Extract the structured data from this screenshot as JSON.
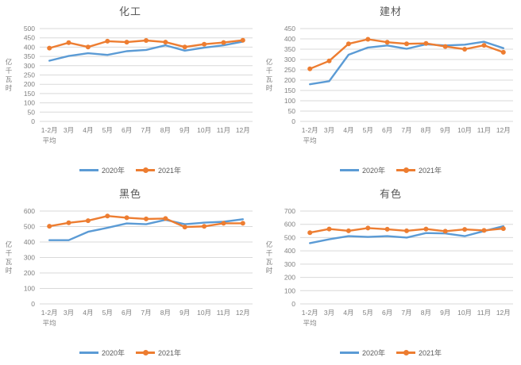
{
  "page": {
    "background": "#ffffff"
  },
  "colors": {
    "series2020": "#5B9BD5",
    "series2021": "#ED7D31",
    "grid": "#D9D9D9",
    "tick_text": "#808080",
    "title_text": "#595959"
  },
  "chart_data": [
    {
      "type": "line",
      "title": "化工",
      "ylabel": "亿千瓦时",
      "ylim": [
        0,
        500
      ],
      "ytick_step": 50,
      "grid": true,
      "legend_position": "bottom",
      "categories": [
        [
          "1-2月",
          "平均"
        ],
        [
          "3月"
        ],
        [
          "4月"
        ],
        [
          "5月"
        ],
        [
          "6月"
        ],
        [
          "7月"
        ],
        [
          "8月"
        ],
        [
          "9月"
        ],
        [
          "10月"
        ],
        [
          "11月"
        ],
        [
          "12月"
        ]
      ],
      "series": [
        {
          "name": "2020年",
          "color": "#5B9BD5",
          "marker": false,
          "values": [
            327,
            352,
            367,
            358,
            378,
            385,
            410,
            381,
            397,
            410,
            430
          ]
        },
        {
          "name": "2021年",
          "color": "#ED7D31",
          "marker": true,
          "values": [
            395,
            424,
            401,
            432,
            427,
            436,
            427,
            401,
            416,
            425,
            437
          ]
        }
      ]
    },
    {
      "type": "line",
      "title": "建材",
      "ylabel": "亿千瓦时",
      "ylim": [
        0,
        450
      ],
      "ytick_step": 50,
      "grid": true,
      "legend_position": "bottom",
      "categories": [
        [
          "1-2月",
          "平均"
        ],
        [
          "3月"
        ],
        [
          "4月"
        ],
        [
          "5月"
        ],
        [
          "6月"
        ],
        [
          "7月"
        ],
        [
          "8月"
        ],
        [
          "9月"
        ],
        [
          "10月"
        ],
        [
          "11月"
        ],
        [
          "12月"
        ]
      ],
      "series": [
        {
          "name": "2020年",
          "color": "#5B9BD5",
          "marker": false,
          "values": [
            180,
            195,
            323,
            358,
            368,
            352,
            374,
            368,
            372,
            386,
            355
          ]
        },
        {
          "name": "2021年",
          "color": "#ED7D31",
          "marker": true,
          "values": [
            255,
            293,
            376,
            398,
            384,
            376,
            378,
            363,
            350,
            369,
            335
          ]
        }
      ]
    },
    {
      "type": "line",
      "title": "黑色",
      "ylabel": "亿千瓦时",
      "ylim": [
        0,
        600
      ],
      "ytick_step": 100,
      "grid": true,
      "legend_position": "bottom",
      "categories": [
        [
          "1-2月",
          "平均"
        ],
        [
          "3月"
        ],
        [
          "4月"
        ],
        [
          "5月"
        ],
        [
          "6月"
        ],
        [
          "7月"
        ],
        [
          "8月"
        ],
        [
          "9月"
        ],
        [
          "10月"
        ],
        [
          "11月"
        ],
        [
          "12月"
        ]
      ],
      "series": [
        {
          "name": "2020年",
          "color": "#5B9BD5",
          "marker": false,
          "values": [
            412,
            412,
            466,
            492,
            520,
            515,
            543,
            515,
            525,
            531,
            547
          ]
        },
        {
          "name": "2021年",
          "color": "#ED7D31",
          "marker": true,
          "values": [
            502,
            524,
            538,
            568,
            557,
            549,
            552,
            497,
            501,
            521,
            521
          ]
        }
      ]
    },
    {
      "type": "line",
      "title": "有色",
      "ylabel": "亿千瓦时",
      "ylim": [
        0,
        700
      ],
      "ytick_step": 100,
      "grid": true,
      "legend_position": "bottom",
      "categories": [
        [
          "1-2月",
          "平均"
        ],
        [
          "3月"
        ],
        [
          "4月"
        ],
        [
          "5月"
        ],
        [
          "6月"
        ],
        [
          "7月"
        ],
        [
          "8月"
        ],
        [
          "9月"
        ],
        [
          "10月"
        ],
        [
          "11月"
        ],
        [
          "12月"
        ]
      ],
      "series": [
        {
          "name": "2020年",
          "color": "#5B9BD5",
          "marker": false,
          "values": [
            458,
            487,
            511,
            505,
            511,
            500,
            534,
            531,
            511,
            549,
            586
          ]
        },
        {
          "name": "2021年",
          "color": "#ED7D31",
          "marker": true,
          "values": [
            537,
            565,
            551,
            572,
            563,
            551,
            565,
            548,
            562,
            554,
            568
          ]
        }
      ]
    }
  ]
}
